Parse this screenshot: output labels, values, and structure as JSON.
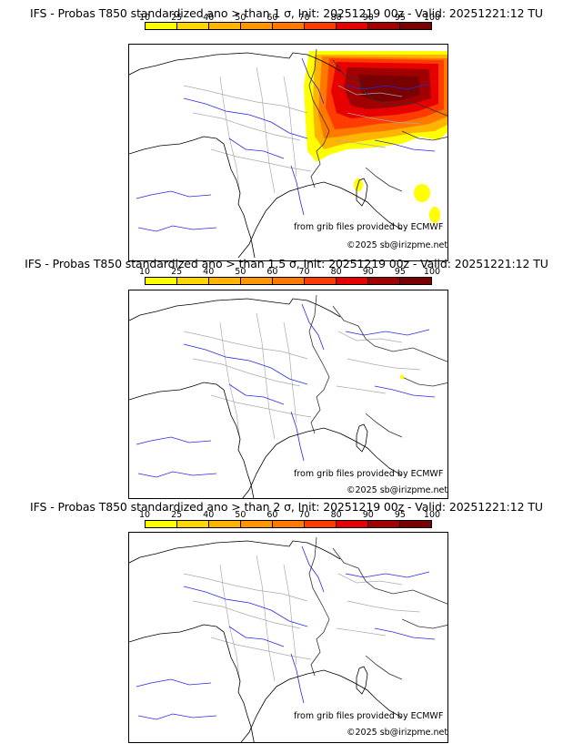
{
  "colorbar": {
    "ticks": [
      "10",
      "25",
      "40",
      "50",
      "60",
      "70",
      "80",
      "90",
      "95",
      "100"
    ],
    "colors": [
      "#ffff00",
      "#ffd700",
      "#ffb400",
      "#ff9600",
      "#ff7800",
      "#ff3c00",
      "#e60000",
      "#a00000",
      "#780000"
    ]
  },
  "panels": [
    {
      "title": "IFS - Probas T850  standardized ano > than 1 σ, Init: 20251219 00z - Valid: 20251221:12 TU",
      "source": "from grib files provided by ECMWF",
      "copyright": "©2025 sb@irizpme.net"
    },
    {
      "title": "IFS - Probas T850  standardized ano > than 1.5 σ, Init: 20251219 00z - Valid: 20251221:12 TU",
      "source": "from grib files provided by ECMWF",
      "copyright": "©2025 sb@irizpme.net"
    },
    {
      "title": "IFS - Probas T850  standardized ano > than 2 σ, Init: 20251219 00z - Valid: 20251221:12 TU",
      "source": "from grib files provided by ECMWF",
      "copyright": "©2025 sb@irizpme.net"
    }
  ]
}
